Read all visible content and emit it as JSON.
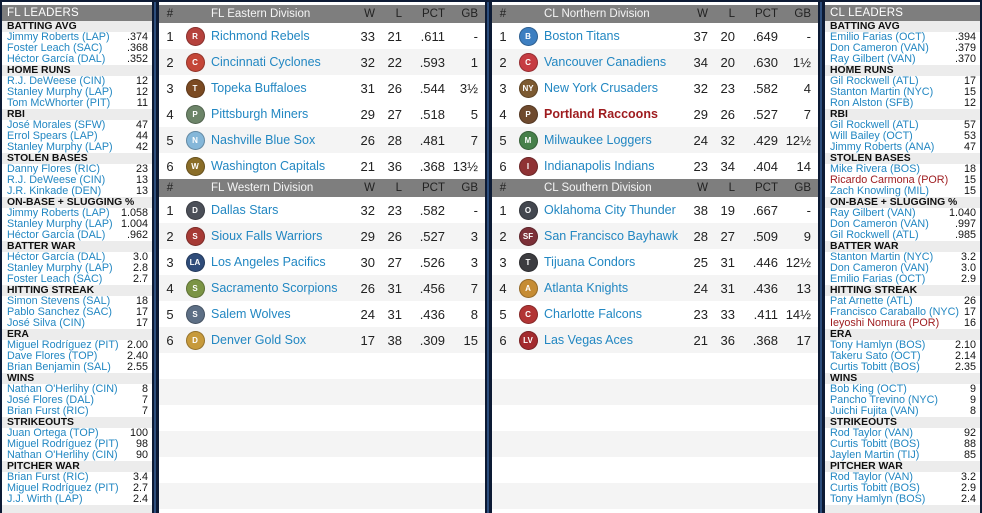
{
  "colors": {
    "page_background": "#0c1a34",
    "panel_divider": "#2d4e7d",
    "header_bar": "#7e7e7e",
    "header_text": "#ffffff",
    "link_blue": "#2287c2",
    "user_team_red": "#9e1b1e",
    "row_alternate": "#f4f4f4"
  },
  "columns": {
    "rank": "#",
    "wins": "W",
    "losses": "L",
    "pct": "PCT",
    "gb": "GB"
  },
  "left_leaders": {
    "title": "FL LEADERS",
    "sections": [
      {
        "label": "BATTING AVG",
        "entries": [
          {
            "name": "Jimmy Roberts (LAP)",
            "value": ".374"
          },
          {
            "name": "Foster Leach (SAC)",
            "value": ".368"
          },
          {
            "name": "Héctor García (DAL)",
            "value": ".352"
          }
        ]
      },
      {
        "label": "HOME RUNS",
        "entries": [
          {
            "name": "R.J. DeWeese (CIN)",
            "value": "12"
          },
          {
            "name": "Stanley Murphy (LAP)",
            "value": "12"
          },
          {
            "name": "Tom McWhorter (PIT)",
            "value": "11"
          }
        ]
      },
      {
        "label": "RBI",
        "entries": [
          {
            "name": "José Morales (SFW)",
            "value": "47"
          },
          {
            "name": "Errol Spears (LAP)",
            "value": "44"
          },
          {
            "name": "Stanley Murphy (LAP)",
            "value": "42"
          }
        ]
      },
      {
        "label": "STOLEN BASES",
        "entries": [
          {
            "name": "Danny Flores (RIC)",
            "value": "23"
          },
          {
            "name": "R.J. DeWeese (CIN)",
            "value": "13"
          },
          {
            "name": "J.R. Kinkade (DEN)",
            "value": "13"
          }
        ]
      },
      {
        "label": "ON-BASE + SLUGGING %",
        "entries": [
          {
            "name": "Jimmy Roberts (LAP)",
            "value": "1.058"
          },
          {
            "name": "Stanley Murphy (LAP)",
            "value": "1.004"
          },
          {
            "name": "Héctor García (DAL)",
            "value": ".962"
          }
        ]
      },
      {
        "label": "BATTER WAR",
        "entries": [
          {
            "name": "Héctor García (DAL)",
            "value": "3.0"
          },
          {
            "name": "Stanley Murphy (LAP)",
            "value": "2.8"
          },
          {
            "name": "Foster Leach (SAC)",
            "value": "2.7"
          }
        ]
      },
      {
        "label": "HITTING STREAK",
        "entries": [
          {
            "name": "Simon Stevens (SAL)",
            "value": "18"
          },
          {
            "name": "Pablo Sanchez (SAC)",
            "value": "17"
          },
          {
            "name": "José Silva (CIN)",
            "value": "17"
          }
        ]
      },
      {
        "label": "ERA",
        "entries": [
          {
            "name": "Miguel Rodríguez (PIT)",
            "value": "2.00"
          },
          {
            "name": "Dave Flores (TOP)",
            "value": "2.40"
          },
          {
            "name": "Brian Benjamin (SAL)",
            "value": "2.55"
          }
        ]
      },
      {
        "label": "WINS",
        "entries": [
          {
            "name": "Nathan O'Herlihy (CIN)",
            "value": "8"
          },
          {
            "name": "José Flores (DAL)",
            "value": "7"
          },
          {
            "name": "Brian Furst (RIC)",
            "value": "7"
          }
        ]
      },
      {
        "label": "STRIKEOUTS",
        "entries": [
          {
            "name": "Juan Ortega (TOP)",
            "value": "100"
          },
          {
            "name": "Miguel Rodríguez (PIT)",
            "value": "98"
          },
          {
            "name": "Nathan O'Herlihy (CIN)",
            "value": "90"
          }
        ]
      },
      {
        "label": "PITCHER WAR",
        "entries": [
          {
            "name": "Brian Furst (RIC)",
            "value": "3.4"
          },
          {
            "name": "Miguel Rodríguez (PIT)",
            "value": "2.7"
          },
          {
            "name": "J.J. Wirth (LAP)",
            "value": "2.4"
          }
        ]
      }
    ]
  },
  "right_leaders": {
    "title": "CL LEADERS",
    "sections": [
      {
        "label": "BATTING AVG",
        "entries": [
          {
            "name": "Emilio Farias (OCT)",
            "value": ".394"
          },
          {
            "name": "Don Cameron (VAN)",
            "value": ".379"
          },
          {
            "name": "Ray Gilbert (VAN)",
            "value": ".370"
          }
        ]
      },
      {
        "label": "HOME RUNS",
        "entries": [
          {
            "name": "Gil Rockwell (ATL)",
            "value": "17"
          },
          {
            "name": "Stanton Martin (NYC)",
            "value": "15"
          },
          {
            "name": "Ron Alston (SFB)",
            "value": "12"
          }
        ]
      },
      {
        "label": "RBI",
        "entries": [
          {
            "name": "Gil Rockwell (ATL)",
            "value": "57"
          },
          {
            "name": "Will Bailey (OCT)",
            "value": "53"
          },
          {
            "name": "Jimmy Roberts (ANA)",
            "value": "47"
          }
        ]
      },
      {
        "label": "STOLEN BASES",
        "entries": [
          {
            "name": "Mike Rivera (BOS)",
            "value": "18"
          },
          {
            "name": "Ricardo Carmona (POR)",
            "value": "15",
            "hl": true
          },
          {
            "name": "Zach Knowling (MIL)",
            "value": "15"
          }
        ]
      },
      {
        "label": "ON-BASE + SLUGGING %",
        "entries": [
          {
            "name": "Ray Gilbert (VAN)",
            "value": "1.040"
          },
          {
            "name": "Don Cameron (VAN)",
            "value": ".997"
          },
          {
            "name": "Gil Rockwell (ATL)",
            "value": ".985"
          }
        ]
      },
      {
        "label": "BATTER WAR",
        "entries": [
          {
            "name": "Stanton Martin (NYC)",
            "value": "3.2"
          },
          {
            "name": "Don Cameron (VAN)",
            "value": "3.0"
          },
          {
            "name": "Emilio Farias (OCT)",
            "value": "2.9"
          }
        ]
      },
      {
        "label": "HITTING STREAK",
        "entries": [
          {
            "name": "Pat Arnette (ATL)",
            "value": "26"
          },
          {
            "name": "Francisco Caraballo (NYC)",
            "value": "17"
          },
          {
            "name": "Ieyoshi Nomura (POR)",
            "value": "16",
            "hl": true
          }
        ]
      },
      {
        "label": "ERA",
        "entries": [
          {
            "name": "Tony Hamlyn (BOS)",
            "value": "2.10"
          },
          {
            "name": "Takeru Sato (OCT)",
            "value": "2.14"
          },
          {
            "name": "Curtis Tobitt (BOS)",
            "value": "2.35"
          }
        ]
      },
      {
        "label": "WINS",
        "entries": [
          {
            "name": "Bob King (OCT)",
            "value": "9"
          },
          {
            "name": "Pancho Trevino (NYC)",
            "value": "9"
          },
          {
            "name": "Juichi Fujita (VAN)",
            "value": "8"
          }
        ]
      },
      {
        "label": "STRIKEOUTS",
        "entries": [
          {
            "name": "Rod Taylor (VAN)",
            "value": "92"
          },
          {
            "name": "Curtis Tobitt (BOS)",
            "value": "88"
          },
          {
            "name": "Jaylen Martin (TIJ)",
            "value": "85"
          }
        ]
      },
      {
        "label": "PITCHER WAR",
        "entries": [
          {
            "name": "Rod Taylor (VAN)",
            "value": "3.2"
          },
          {
            "name": "Curtis Tobitt (BOS)",
            "value": "2.9"
          },
          {
            "name": "Tony Hamlyn (BOS)",
            "value": "2.4"
          }
        ]
      }
    ]
  },
  "standings": [
    {
      "title": "FL Eastern Division",
      "rows": [
        {
          "rank": "1",
          "team": "Richmond Rebels",
          "w": "33",
          "l": "21",
          "pct": ".611",
          "gb": "-",
          "logo_text": "R",
          "logo_color": "#b5413c"
        },
        {
          "rank": "2",
          "team": "Cincinnati Cyclones",
          "w": "32",
          "l": "22",
          "pct": ".593",
          "gb": "1",
          "logo_text": "C",
          "logo_color": "#c44638"
        },
        {
          "rank": "3",
          "team": "Topeka Buffaloes",
          "w": "31",
          "l": "26",
          "pct": ".544",
          "gb": "3½",
          "logo_text": "T",
          "logo_color": "#7b4a22"
        },
        {
          "rank": "4",
          "team": "Pittsburgh Miners",
          "w": "29",
          "l": "27",
          "pct": ".518",
          "gb": "5",
          "logo_text": "P",
          "logo_color": "#6c8468"
        },
        {
          "rank": "5",
          "team": "Nashville Blue Sox",
          "w": "26",
          "l": "28",
          "pct": ".481",
          "gb": "7",
          "logo_text": "N",
          "logo_color": "#85b7d9"
        },
        {
          "rank": "6",
          "team": "Washington Capitals",
          "w": "21",
          "l": "36",
          "pct": ".368",
          "gb": "13½",
          "logo_text": "W",
          "logo_color": "#8a6d28"
        }
      ]
    },
    {
      "title": "FL Western Division",
      "rows": [
        {
          "rank": "1",
          "team": "Dallas Stars",
          "w": "32",
          "l": "23",
          "pct": ".582",
          "gb": "-",
          "logo_text": "D",
          "logo_color": "#4b4f58"
        },
        {
          "rank": "2",
          "team": "Sioux Falls Warriors",
          "w": "29",
          "l": "26",
          "pct": ".527",
          "gb": "3",
          "logo_text": "S",
          "logo_color": "#a63a35"
        },
        {
          "rank": "3",
          "team": "Los Angeles Pacifics",
          "w": "30",
          "l": "27",
          "pct": ".526",
          "gb": "3",
          "logo_text": "LA",
          "logo_color": "#2f4c7a"
        },
        {
          "rank": "4",
          "team": "Sacramento Scorpions",
          "w": "26",
          "l": "31",
          "pct": ".456",
          "gb": "7",
          "logo_text": "S",
          "logo_color": "#7b9444"
        },
        {
          "rank": "5",
          "team": "Salem Wolves",
          "w": "24",
          "l": "31",
          "pct": ".436",
          "gb": "8",
          "logo_text": "S",
          "logo_color": "#5d6f85"
        },
        {
          "rank": "6",
          "team": "Denver Gold Sox",
          "w": "17",
          "l": "38",
          "pct": ".309",
          "gb": "15",
          "logo_text": "D",
          "logo_color": "#c79a3b"
        }
      ]
    },
    {
      "title": "CL Northern Division",
      "rows": [
        {
          "rank": "1",
          "team": "Boston Titans",
          "w": "37",
          "l": "20",
          "pct": ".649",
          "gb": "-",
          "logo_text": "B",
          "logo_color": "#3d7fc1"
        },
        {
          "rank": "2",
          "team": "Vancouver Canadiens",
          "w": "34",
          "l": "20",
          "pct": ".630",
          "gb": "1½",
          "logo_text": "C",
          "logo_color": "#c63c42"
        },
        {
          "rank": "3",
          "team": "New York Crusaders",
          "w": "32",
          "l": "23",
          "pct": ".582",
          "gb": "4",
          "logo_text": "NY",
          "logo_color": "#7d5a31"
        },
        {
          "rank": "4",
          "team": "Portland Raccoons",
          "w": "29",
          "l": "26",
          "pct": ".527",
          "gb": "7",
          "logo_text": "P",
          "logo_color": "#6f4a2e",
          "hl": true
        },
        {
          "rank": "5",
          "team": "Milwaukee Loggers",
          "w": "24",
          "l": "32",
          "pct": ".429",
          "gb": "12½",
          "logo_text": "M",
          "logo_color": "#47804a"
        },
        {
          "rank": "6",
          "team": "Indianapolis Indians",
          "w": "23",
          "l": "34",
          "pct": ".404",
          "gb": "14",
          "logo_text": "I",
          "logo_color": "#8f3234"
        }
      ]
    },
    {
      "title": "CL Southern Division",
      "rows": [
        {
          "rank": "1",
          "team": "Oklahoma City Thunder",
          "w": "38",
          "l": "19",
          "pct": ".667",
          "gb": "-",
          "logo_text": "O",
          "logo_color": "#43474f"
        },
        {
          "rank": "2",
          "team": "San Francisco Bayhawks",
          "w": "28",
          "l": "27",
          "pct": ".509",
          "gb": "9",
          "logo_text": "SF",
          "logo_color": "#7c3038"
        },
        {
          "rank": "3",
          "team": "Tijuana Condors",
          "w": "25",
          "l": "31",
          "pct": ".446",
          "gb": "12½",
          "logo_text": "T",
          "logo_color": "#3c3c40"
        },
        {
          "rank": "4",
          "team": "Atlanta Knights",
          "w": "24",
          "l": "31",
          "pct": ".436",
          "gb": "13",
          "logo_text": "A",
          "logo_color": "#c68c33"
        },
        {
          "rank": "5",
          "team": "Charlotte Falcons",
          "w": "23",
          "l": "33",
          "pct": ".411",
          "gb": "14½",
          "logo_text": "C",
          "logo_color": "#b23434"
        },
        {
          "rank": "6",
          "team": "Las Vegas Aces",
          "w": "21",
          "l": "36",
          "pct": ".368",
          "gb": "17",
          "logo_text": "LV",
          "logo_color": "#a32b2e"
        }
      ]
    }
  ]
}
